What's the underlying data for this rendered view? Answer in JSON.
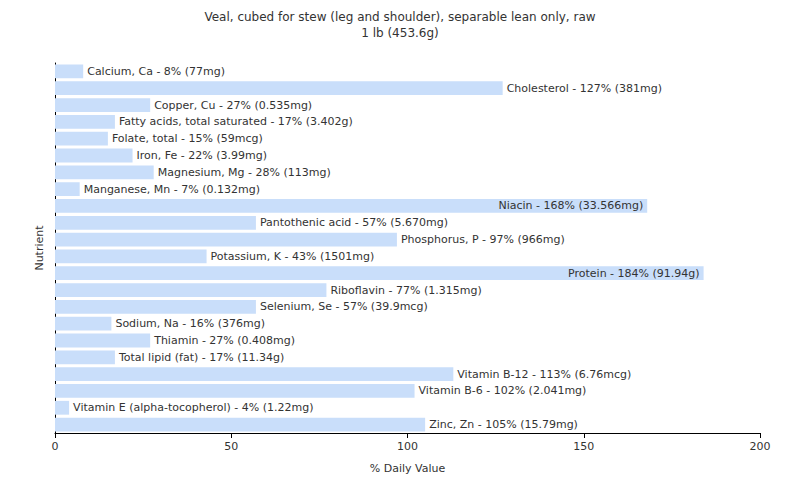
{
  "chart_data": {
    "type": "bar",
    "orientation": "horizontal",
    "title": "Veal, cubed for stew (leg and shoulder), separable lean only, raw",
    "subtitle": "1 lb (453.6g)",
    "x_label": "% Daily Value",
    "y_label": "Nutrient",
    "categories": [
      null,
      null,
      null,
      null,
      null,
      null,
      null,
      null,
      null,
      null,
      null,
      null,
      null,
      null,
      null,
      null,
      null,
      null,
      null,
      null,
      null,
      null
    ],
    "values": [
      8,
      127,
      27,
      17,
      15,
      22,
      28,
      7,
      168,
      57,
      97,
      43,
      184,
      77,
      57,
      16,
      27,
      17,
      113,
      102,
      4,
      105
    ],
    "value_labels": [
      "Calcium, Ca - 8% (77mg)",
      "Cholesterol - 127% (381mg)",
      "Copper, Cu - 27% (0.535mg)",
      "Fatty acids, total saturated - 17% (3.402g)",
      "Folate, total - 15% (59mcg)",
      "Iron, Fe - 22% (3.99mg)",
      "Magnesium, Mg - 28% (113mg)",
      "Manganese, Mn - 7% (0.132mg)",
      "Niacin - 168% (33.566mg)",
      "Pantothenic acid - 57% (5.670mg)",
      "Phosphorus, P - 97% (966mg)",
      "Potassium, K - 43% (1501mg)",
      "Protein - 184% (91.94g)",
      "Riboflavin - 77% (1.315mg)",
      "Selenium, Se - 57% (39.9mcg)",
      "Sodium, Na - 16% (376mg)",
      "Thiamin - 27% (0.408mg)",
      "Total lipid (fat) - 17% (11.34g)",
      "Vitamin B-12 - 113% (6.76mcg)",
      "Vitamin B-6 - 102% (2.041mg)",
      "Vitamin E (alpha-tocopherol) - 4% (1.22mg)",
      "Zinc, Zn - 105% (15.79mg)"
    ],
    "data_labels": true,
    "color": "#c9defa",
    "xlim": [
      0,
      200
    ],
    "xticks": [
      0,
      50,
      100,
      150,
      200
    ],
    "grid": false,
    "tick_labels": "x"
  }
}
